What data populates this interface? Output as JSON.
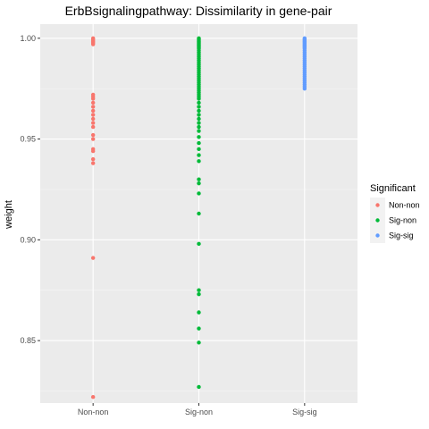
{
  "chart_data": {
    "type": "scatter",
    "title": "ErbBsignalingpathway: Dissimilarity in gene-pair",
    "xlabel": "",
    "ylabel": "weight",
    "categories": [
      "Non-non",
      "Sig-non",
      "Sig-sig"
    ],
    "ylim": [
      0.819,
      1.007
    ],
    "yticks": [
      0.85,
      0.9,
      0.95,
      1.0
    ],
    "ytick_labels": [
      "0.85",
      "0.90",
      "0.95",
      "1.00"
    ],
    "grid": true,
    "legend": {
      "title": "Significant",
      "position": "right"
    },
    "series": [
      {
        "name": "Non-non",
        "color": "#F8766D",
        "category": "Non-non",
        "values": [
          1.0,
          0.9995,
          0.999,
          0.9985,
          0.998,
          0.9975,
          0.997,
          0.972,
          0.971,
          0.97,
          0.968,
          0.966,
          0.964,
          0.962,
          0.96,
          0.958,
          0.956,
          0.952,
          0.95,
          0.945,
          0.944,
          0.94,
          0.938,
          0.891,
          0.822
        ]
      },
      {
        "name": "Sig-non",
        "color": "#00BA38",
        "category": "Sig-non",
        "values": [
          1.0,
          0.9995,
          0.999,
          0.9985,
          0.998,
          0.9975,
          0.997,
          0.9965,
          0.996,
          0.9955,
          0.995,
          0.994,
          0.993,
          0.992,
          0.991,
          0.99,
          0.989,
          0.988,
          0.987,
          0.986,
          0.985,
          0.984,
          0.983,
          0.982,
          0.981,
          0.98,
          0.979,
          0.978,
          0.977,
          0.976,
          0.975,
          0.974,
          0.973,
          0.972,
          0.971,
          0.97,
          0.968,
          0.966,
          0.964,
          0.962,
          0.96,
          0.958,
          0.956,
          0.954,
          0.951,
          0.948,
          0.945,
          0.942,
          0.939,
          0.93,
          0.928,
          0.923,
          0.913,
          0.898,
          0.875,
          0.873,
          0.864,
          0.856,
          0.849,
          0.827
        ]
      },
      {
        "name": "Sig-sig",
        "color": "#619CFF",
        "category": "Sig-sig",
        "values": [
          1.0,
          0.9995,
          0.999,
          0.9985,
          0.998,
          0.9975,
          0.997,
          0.9965,
          0.996,
          0.9955,
          0.995,
          0.994,
          0.993,
          0.992,
          0.991,
          0.99,
          0.989,
          0.988,
          0.987,
          0.986,
          0.985,
          0.984,
          0.983,
          0.982,
          0.981,
          0.98,
          0.979,
          0.978,
          0.977,
          0.976,
          0.975
        ]
      }
    ]
  }
}
